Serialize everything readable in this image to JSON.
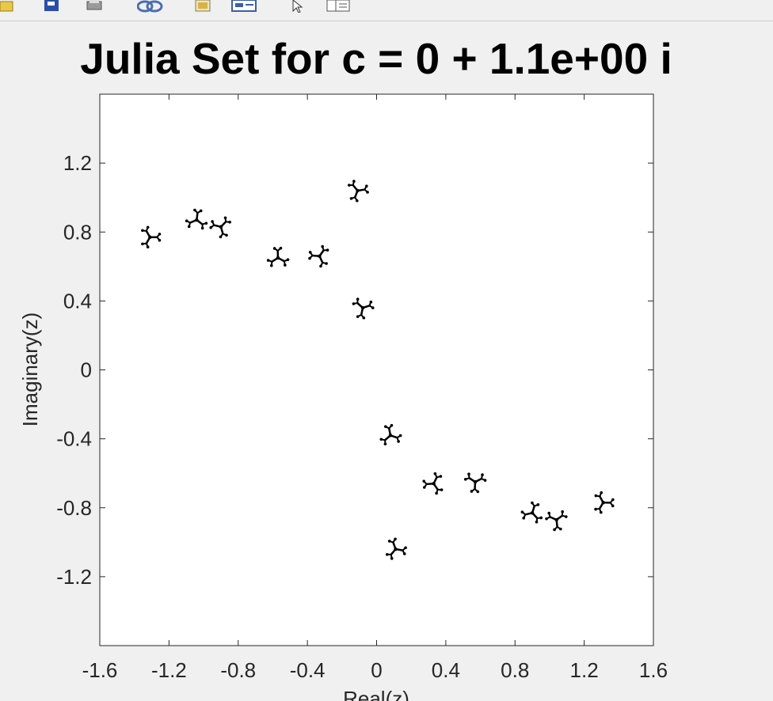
{
  "toolbar": {
    "buttons": [
      {
        "name": "open-file-icon",
        "color": "#e8c84a"
      },
      {
        "name": "save-icon",
        "color": "#2b4fa8"
      },
      {
        "name": "print-icon",
        "color": "#8a8a8a"
      },
      {
        "name": "link-icon",
        "color": "#4a6fb0"
      },
      {
        "name": "insert-colorbar-icon",
        "color": "#d9b04a"
      },
      {
        "name": "insert-legend-icon",
        "color": "#3a5ea8"
      },
      {
        "name": "edit-plot-icon",
        "color": "#555555"
      },
      {
        "name": "property-inspector-icon",
        "color": "#777777"
      }
    ]
  },
  "chart_data": {
    "type": "scatter",
    "title": "Julia Set for c = 0 + 1.1e+00 i",
    "xlabel": "Real(z)",
    "ylabel": "Imaginary(z)",
    "xlim": [
      -1.6,
      1.6
    ],
    "ylim": [
      -1.6,
      1.6
    ],
    "xticks": [
      "-1.6",
      "-1.2",
      "-0.8",
      "-0.4",
      "0",
      "0.4",
      "0.8",
      "1.2",
      "1.6"
    ],
    "yticks": [
      "1.2",
      "0.8",
      "0.4",
      "0",
      "-0.4",
      "-0.8",
      "-1.2"
    ],
    "grid": false,
    "marker_color": "#000000",
    "clusters": [
      {
        "x": -1.31,
        "y": 0.77
      },
      {
        "x": -1.04,
        "y": 0.87
      },
      {
        "x": -0.9,
        "y": 0.83
      },
      {
        "x": -0.11,
        "y": 1.04
      },
      {
        "x": -0.57,
        "y": 0.65
      },
      {
        "x": -0.33,
        "y": 0.66
      },
      {
        "x": -0.08,
        "y": 0.36
      },
      {
        "x": 0.08,
        "y": -0.38
      },
      {
        "x": 0.33,
        "y": -0.66
      },
      {
        "x": 0.57,
        "y": -0.65
      },
      {
        "x": 0.11,
        "y": -1.04
      },
      {
        "x": 0.9,
        "y": -0.83
      },
      {
        "x": 1.04,
        "y": -0.87
      },
      {
        "x": 1.31,
        "y": -0.77
      }
    ]
  }
}
